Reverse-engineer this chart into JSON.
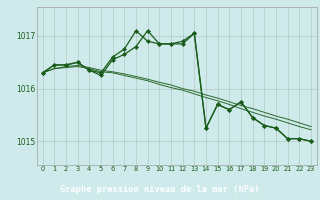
{
  "background_color": "#ceeaea",
  "grid_color": "#a0a0a0",
  "line_color": "#1a5c1a",
  "marker_color": "#1a5c1a",
  "xlabel": "Graphe pression niveau de la mer (hPa)",
  "xlabel_color": "#ffffff",
  "xlabel_bg": "#2d6e2d",
  "tick_label_color": "#1a5c1a",
  "ylim": [
    1014.55,
    1017.55
  ],
  "xlim": [
    -0.5,
    23.5
  ],
  "yticks": [
    1015,
    1016,
    1017
  ],
  "xticks": [
    0,
    1,
    2,
    3,
    4,
    5,
    6,
    7,
    8,
    9,
    10,
    11,
    12,
    13,
    14,
    15,
    16,
    17,
    18,
    19,
    20,
    21,
    22,
    23
  ],
  "series_main1": [
    1016.3,
    1016.45,
    1016.45,
    1016.5,
    1016.35,
    1016.3,
    1016.6,
    1016.75,
    1017.1,
    1016.9,
    1016.85,
    1016.85,
    1016.9,
    1017.05,
    1015.25,
    1015.7,
    1015.6,
    1015.75,
    1015.45,
    1015.3,
    1015.25,
    1015.05,
    1015.05,
    1015.0
  ],
  "series_main2": [
    1016.3,
    1016.45,
    1016.45,
    1016.5,
    1016.35,
    1016.25,
    1016.55,
    1016.65,
    1016.8,
    1017.1,
    1016.85,
    1016.85,
    1016.85,
    1017.05,
    1015.25,
    1015.7,
    1015.6,
    1015.75,
    1015.45,
    1015.3,
    1015.25,
    1015.05,
    1015.05,
    1015.0
  ],
  "series_trend1": [
    1016.3,
    1016.38,
    1016.4,
    1016.42,
    1016.38,
    1016.32,
    1016.3,
    1016.25,
    1016.2,
    1016.15,
    1016.08,
    1016.02,
    1015.97,
    1015.9,
    1015.83,
    1015.77,
    1015.7,
    1015.62,
    1015.55,
    1015.48,
    1015.42,
    1015.35,
    1015.28,
    1015.22
  ],
  "series_trend2": [
    1016.3,
    1016.38,
    1016.42,
    1016.44,
    1016.4,
    1016.35,
    1016.32,
    1016.28,
    1016.23,
    1016.18,
    1016.12,
    1016.07,
    1016.0,
    1015.95,
    1015.88,
    1015.82,
    1015.75,
    1015.68,
    1015.62,
    1015.55,
    1015.48,
    1015.42,
    1015.35,
    1015.28
  ]
}
